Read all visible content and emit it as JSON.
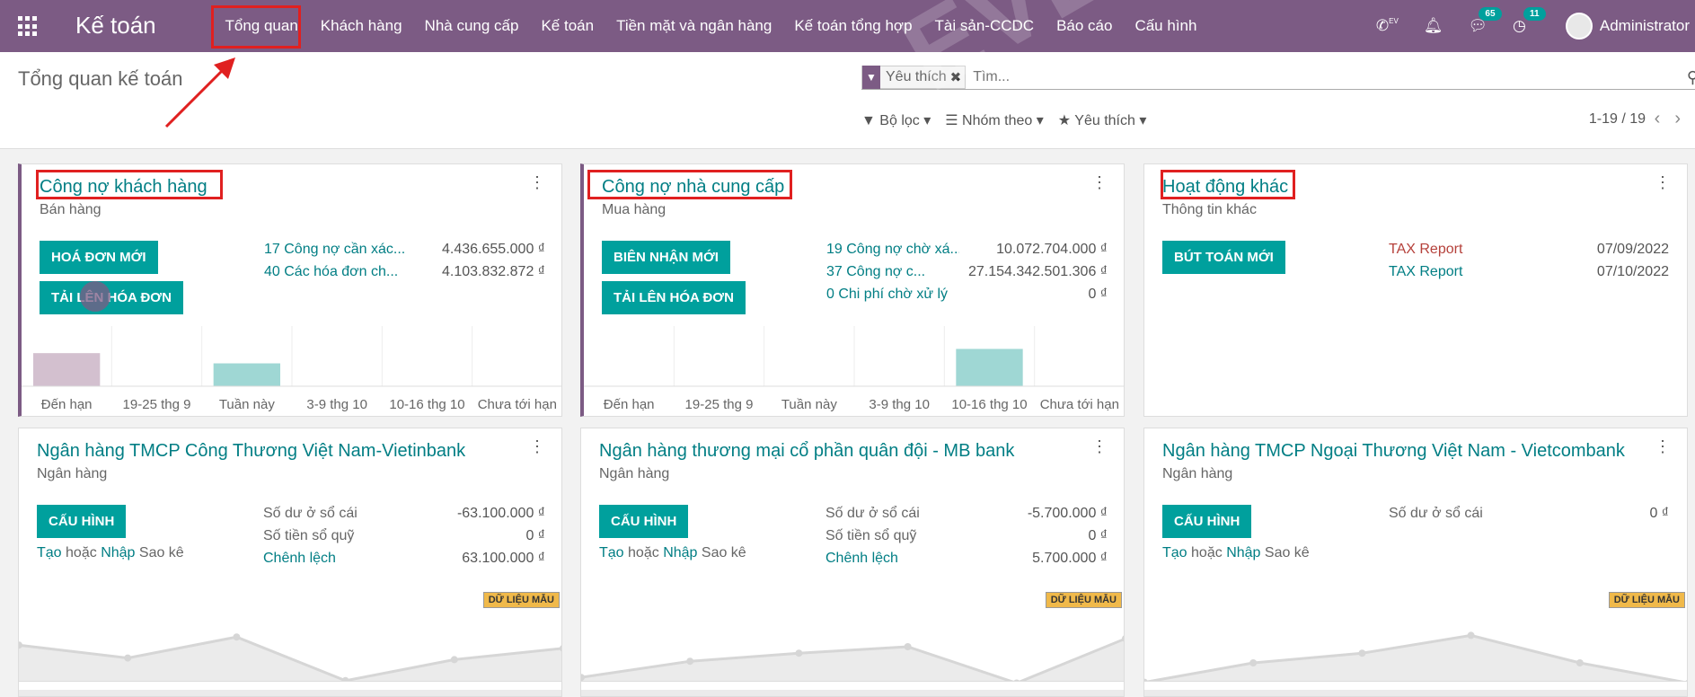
{
  "app": {
    "title": "Kế toán"
  },
  "menu": [
    "Tổng quan",
    "Khách hàng",
    "Nhà cung cấp",
    "Kế toán",
    "Tiền mặt và ngân hàng",
    "Kế toán tổng hợp",
    "Tài sản-CCDC",
    "Báo cáo",
    "Cấu hình"
  ],
  "systray": {
    "lang": "EV",
    "messages_count": "65",
    "activities_count": "11",
    "user": "Administrator"
  },
  "control": {
    "page_title": "Tổng quan kế toán",
    "facet": "Yêu thích",
    "search_placeholder": "Tìm...",
    "filters": [
      "Bộ lọc",
      "Nhóm theo",
      "Yêu thích"
    ],
    "pager": "1-19 / 19"
  },
  "cards": [
    {
      "title": "Công nợ khách hàng",
      "subtitle": "Bán hàng",
      "buttons": [
        "HOÁ ĐƠN MỚI",
        "TẢI LÊN HÓA ĐƠN"
      ],
      "stats": [
        {
          "label": "17 Công nợ cần xác...",
          "value": "4.436.655.000 ₫"
        },
        {
          "label": "40 Các hóa đơn ch...",
          "value": "4.103.832.872 ₫"
        }
      ],
      "chart_labels": [
        "Đến hạn",
        "19-25 thg 9",
        "Tuần này",
        "3-9 thg 10",
        "10-16 thg 10",
        "Chưa tới hạn"
      ],
      "bar_levels": [
        0.55,
        0,
        0.38,
        0,
        0,
        0
      ],
      "bar_colors": [
        "#d3c0cf",
        "#e5e5e5",
        "#9fd7d4",
        "#e5e5e5",
        "#e5e5e5",
        "#e5e5e5"
      ]
    },
    {
      "title": "Công nợ nhà cung cấp",
      "subtitle": "Mua hàng",
      "buttons": [
        "BIÊN NHẬN MỚI",
        "TẢI LÊN HÓA ĐƠN"
      ],
      "stats": [
        {
          "label": "19 Công nợ chờ xá...",
          "value": "10.072.704.000 ₫"
        },
        {
          "label": "37 Công nợ c...",
          "value": "27.154.342.501.306 ₫"
        },
        {
          "label": "0 Chi phí chờ xử lý",
          "value": "0 ₫"
        }
      ],
      "chart_labels": [
        "Đến hạn",
        "19-25 thg 9",
        "Tuần này",
        "3-9 thg 10",
        "10-16 thg 10",
        "Chưa tới hạn"
      ],
      "bar_levels": [
        0,
        0,
        0,
        0,
        0.62,
        0
      ],
      "bar_colors": [
        "#e5e5e5",
        "#e5e5e5",
        "#e5e5e5",
        "#e5e5e5",
        "#9fd7d4",
        "#e5e5e5"
      ]
    },
    {
      "title": "Hoạt động khác",
      "subtitle": "Thông tin khác",
      "buttons": [
        "BÚT TOÁN MỚI"
      ],
      "stats": [
        {
          "label": "TAX Report",
          "value": "07/09/2022"
        },
        {
          "label": "TAX Report",
          "value": "07/10/2022"
        }
      ]
    },
    {
      "title": "Ngân hàng TMCP Công Thương Việt Nam-Vietinbank",
      "subtitle": "Ngân hàng",
      "buttons": [
        "CẤU HÌNH"
      ],
      "stats": [
        {
          "label": "Số dư ở sổ cái",
          "value": "-63.100.000 ₫"
        },
        {
          "label": "Số tiền sổ quỹ",
          "value": "0 ₫"
        },
        {
          "label": "Chênh lệch",
          "value": "63.100.000 ₫"
        }
      ],
      "links": {
        "create": "Tạo",
        "or": "hoặc",
        "import": "Nhập",
        "statement": "Sao kê"
      },
      "sample_tag": "DỮ LIỆU MẪU",
      "line_levels": [
        0.52,
        0.36,
        0.62,
        0.08,
        0.34,
        0.48
      ]
    },
    {
      "title": "Ngân hàng thương mại cổ phần quân đội - MB bank",
      "subtitle": "Ngân hàng",
      "buttons": [
        "CẤU HÌNH"
      ],
      "stats": [
        {
          "label": "Số dư ở sổ cái",
          "value": "-5.700.000 ₫"
        },
        {
          "label": "Số tiền sổ quỹ",
          "value": "0 ₫"
        },
        {
          "label": "Chênh lệch",
          "value": "5.700.000 ₫"
        }
      ],
      "links": {
        "create": "Tạo",
        "or": "hoặc",
        "import": "Nhập",
        "statement": "Sao kê"
      },
      "sample_tag": "DỮ LIỆU MẪU",
      "line_levels": [
        0.12,
        0.32,
        0.42,
        0.5,
        0.05,
        0.6
      ]
    },
    {
      "title": "Ngân hàng TMCP Ngoại Thương Việt Nam - Vietcombank",
      "subtitle": "Ngân hàng",
      "buttons": [
        "CẤU HÌNH"
      ],
      "stats": [
        {
          "label": "Số dư ở sổ cái",
          "value": "0 ₫"
        }
      ],
      "links": {
        "create": "Tạo",
        "or": "hoặc",
        "import": "Nhập",
        "statement": "Sao kê"
      },
      "sample_tag": "DỮ LIỆU MẪU",
      "line_levels": [
        0.06,
        0.3,
        0.42,
        0.64,
        0.3,
        0.05
      ]
    }
  ]
}
